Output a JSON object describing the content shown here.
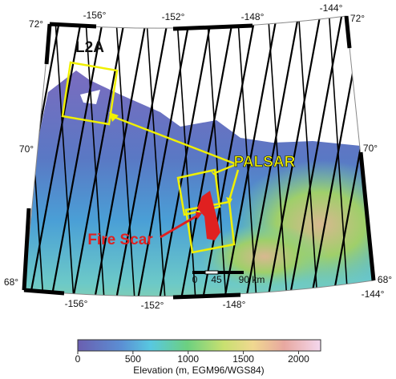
{
  "map": {
    "title": "L2A",
    "annotations": {
      "palsar": "PALSAR",
      "fire_scar": "Fire Scar"
    },
    "latitude_labels": {
      "left": [
        "72°",
        "70°",
        "68°"
      ],
      "right": [
        "72°",
        "70°",
        "68°"
      ]
    },
    "longitude_labels": {
      "top": [
        "-156°",
        "-152°",
        "-148°",
        "-144°"
      ],
      "bottom": [
        "-156°",
        "-152°",
        "-148°",
        "-144°"
      ]
    },
    "scale_bar": [
      "0",
      "45",
      "90 km"
    ]
  },
  "colorbar": {
    "label": "Elevation (m, EGM96/WGS84)",
    "range": [
      0,
      2200
    ],
    "ticks": [
      0,
      500,
      1000,
      1500,
      2000
    ]
  }
}
